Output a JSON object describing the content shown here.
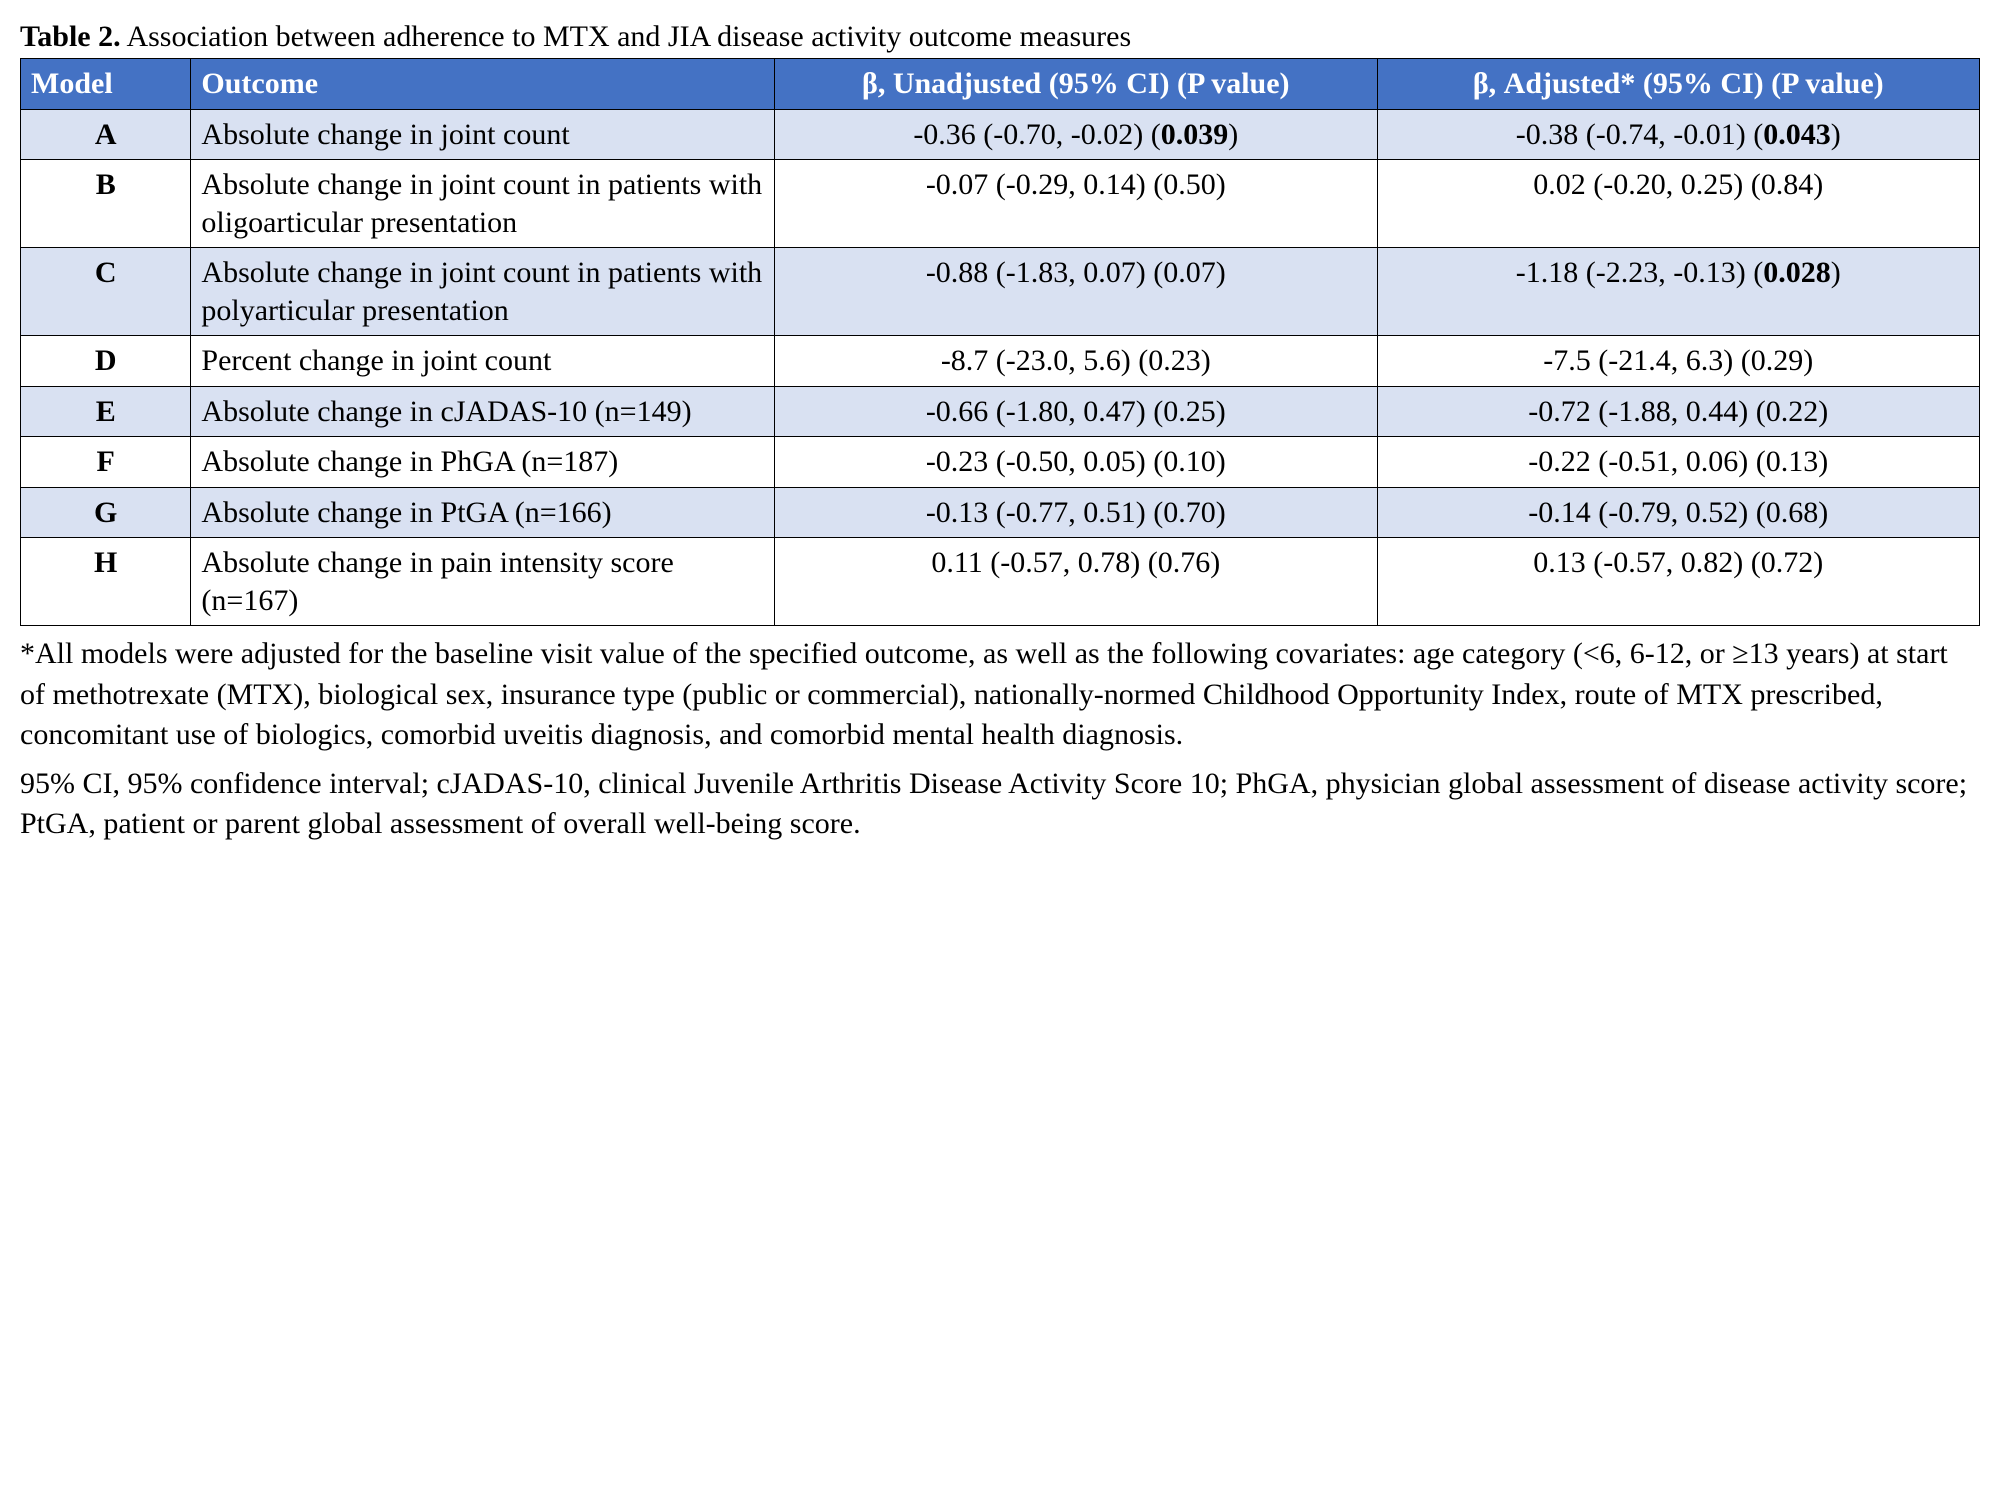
{
  "caption_bold": "Table 2.",
  "caption_rest": " Association between adherence to MTX and JIA disease activity outcome measures",
  "headers": {
    "model": "Model",
    "outcome": "Outcome",
    "unadj": "β, Unadjusted (95% CI) (P value)",
    "adj": "β, Adjusted* (95% CI) (P value)"
  },
  "rows": [
    {
      "model": "A",
      "outcome": "Absolute change in joint count",
      "unadj_pre": "-0.36 (-0.70, -0.02) (",
      "unadj_p": "0.039",
      "unadj_post": ")",
      "unadj_bold": true,
      "adj_pre": "-0.38 (-0.74, -0.01) (",
      "adj_p": "0.043",
      "adj_post": ")",
      "adj_bold": true,
      "shade": true
    },
    {
      "model": "B",
      "outcome": "Absolute change in joint count in patients with oligoarticular presentation",
      "unadj_pre": "-0.07 (-0.29, 0.14) (0.50)",
      "unadj_p": "",
      "unadj_post": "",
      "unadj_bold": false,
      "adj_pre": "0.02 (-0.20, 0.25) (0.84)",
      "adj_p": "",
      "adj_post": "",
      "adj_bold": false,
      "shade": false
    },
    {
      "model": "C",
      "outcome": "Absolute change in joint count in patients with polyarticular presentation",
      "unadj_pre": "-0.88 (-1.83, 0.07) (0.07)",
      "unadj_p": "",
      "unadj_post": "",
      "unadj_bold": false,
      "adj_pre": "-1.18 (-2.23, -0.13) (",
      "adj_p": "0.028",
      "adj_post": ")",
      "adj_bold": true,
      "shade": true
    },
    {
      "model": "D",
      "outcome": "Percent change in joint count",
      "unadj_pre": "-8.7 (-23.0, 5.6) (0.23)",
      "unadj_p": "",
      "unadj_post": "",
      "unadj_bold": false,
      "adj_pre": "-7.5 (-21.4, 6.3) (0.29)",
      "adj_p": "",
      "adj_post": "",
      "adj_bold": false,
      "shade": false
    },
    {
      "model": "E",
      "outcome": "Absolute change in cJADAS-10 (n=149)",
      "unadj_pre": "-0.66 (-1.80, 0.47) (0.25)",
      "unadj_p": "",
      "unadj_post": "",
      "unadj_bold": false,
      "adj_pre": "-0.72 (-1.88, 0.44) (0.22)",
      "adj_p": "",
      "adj_post": "",
      "adj_bold": false,
      "shade": true
    },
    {
      "model": "F",
      "outcome": "Absolute change in PhGA (n=187)",
      "unadj_pre": "-0.23 (-0.50, 0.05) (0.10)",
      "unadj_p": "",
      "unadj_post": "",
      "unadj_bold": false,
      "adj_pre": "-0.22 (-0.51, 0.06) (0.13)",
      "adj_p": "",
      "adj_post": "",
      "adj_bold": false,
      "shade": false
    },
    {
      "model": "G",
      "outcome": "Absolute change in PtGA (n=166)",
      "unadj_pre": "-0.13 (-0.77, 0.51) (0.70)",
      "unadj_p": "",
      "unadj_post": "",
      "unadj_bold": false,
      "adj_pre": "-0.14 (-0.79, 0.52) (0.68)",
      "adj_p": "",
      "adj_post": "",
      "adj_bold": false,
      "shade": true
    },
    {
      "model": "H",
      "outcome": "Absolute change in pain intensity score (n=167)",
      "unadj_pre": "0.11 (-0.57, 0.78) (0.76)",
      "unadj_p": "",
      "unadj_post": "",
      "unadj_bold": false,
      "adj_pre": "0.13 (-0.57, 0.82) (0.72)",
      "adj_p": "",
      "adj_post": "",
      "adj_bold": false,
      "shade": false
    }
  ],
  "footnote1": "*All models were adjusted for the baseline visit value of the specified outcome, as well as the following covariates: age category (<6, 6-12, or ≥13 years) at start of methotrexate (MTX), biological sex, insurance type (public or commercial), nationally-normed Childhood Opportunity Index, route of MTX prescribed, concomitant use of biologics, comorbid uveitis diagnosis, and comorbid mental health diagnosis.",
  "footnote2": "95% CI, 95% confidence interval; cJADAS-10, clinical Juvenile Arthritis Disease Activity Score 10; PhGA, physician global assessment of disease activity score; PtGA, patient or parent global assessment of overall well-being score.",
  "colors": {
    "header_bg": "#4472c4",
    "shade_bg": "#d9e1f2"
  }
}
